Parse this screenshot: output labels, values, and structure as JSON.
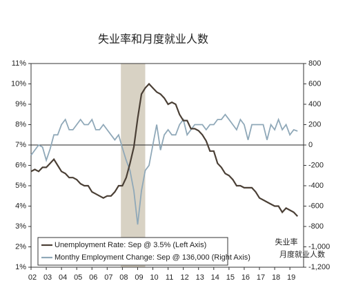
{
  "chart_data": {
    "type": "line",
    "title": "失业率和月度就业人数",
    "x": [
      2002,
      2002.25,
      2002.5,
      2002.75,
      2003,
      2003.25,
      2003.5,
      2003.75,
      2004,
      2004.25,
      2004.5,
      2004.75,
      2005,
      2005.25,
      2005.5,
      2005.75,
      2006,
      2006.25,
      2006.5,
      2006.75,
      2007,
      2007.25,
      2007.5,
      2007.75,
      2008,
      2008.25,
      2008.5,
      2008.75,
      2009,
      2009.25,
      2009.5,
      2009.75,
      2010,
      2010.25,
      2010.5,
      2010.75,
      2011,
      2011.25,
      2011.5,
      2011.75,
      2012,
      2012.25,
      2012.5,
      2012.75,
      2013,
      2013.25,
      2013.5,
      2013.75,
      2014,
      2014.25,
      2014.5,
      2014.75,
      2015,
      2015.25,
      2015.5,
      2015.75,
      2016,
      2016.25,
      2016.5,
      2016.75,
      2017,
      2017.25,
      2017.5,
      2017.75,
      2018,
      2018.25,
      2018.5,
      2018.75,
      2019,
      2019.25,
      2019.5
    ],
    "series": [
      {
        "name": "Unemployment Rate: Sep @ 3.5% (Left Axis)",
        "label": "失业率",
        "color": "#4a3f35",
        "axis": "y",
        "values": [
          5.7,
          5.8,
          5.7,
          5.9,
          5.9,
          6.1,
          6.3,
          6.0,
          5.7,
          5.6,
          5.4,
          5.4,
          5.3,
          5.1,
          5.0,
          5.0,
          4.7,
          4.6,
          4.5,
          4.4,
          4.5,
          4.5,
          4.7,
          5.0,
          5.0,
          5.4,
          6.1,
          6.9,
          8.3,
          9.5,
          9.8,
          10.0,
          9.8,
          9.6,
          9.5,
          9.3,
          9.0,
          9.1,
          9.0,
          8.5,
          8.2,
          8.2,
          7.8,
          7.8,
          7.7,
          7.5,
          7.2,
          6.7,
          6.7,
          6.1,
          5.9,
          5.6,
          5.5,
          5.3,
          5.0,
          5.0,
          4.9,
          4.9,
          4.9,
          4.7,
          4.4,
          4.3,
          4.2,
          4.1,
          4.0,
          4.0,
          3.7,
          3.9,
          3.8,
          3.7,
          3.5
        ]
      },
      {
        "name": "Monthy Employment Change: Sep @ 136,000 (Right Axis)",
        "label": "月度就业人数",
        "color": "#8fa8b8",
        "axis": "y2",
        "values": [
          -100,
          -50,
          0,
          -20,
          -150,
          -40,
          100,
          100,
          200,
          250,
          150,
          150,
          200,
          250,
          200,
          200,
          250,
          150,
          150,
          200,
          150,
          100,
          50,
          100,
          -30,
          -150,
          -250,
          -450,
          -780,
          -450,
          -250,
          -200,
          0,
          200,
          -50,
          100,
          150,
          100,
          100,
          200,
          250,
          100,
          150,
          200,
          200,
          200,
          150,
          200,
          200,
          250,
          250,
          300,
          250,
          200,
          150,
          250,
          200,
          50,
          200,
          200,
          200,
          200,
          50,
          200,
          150,
          250,
          150,
          200,
          100,
          150,
          136
        ]
      }
    ],
    "recession": [
      2007.9,
      2009.5
    ],
    "xlim": [
      2002,
      2019.9
    ],
    "xticks": [
      {
        "value": 2002,
        "label": "02"
      },
      {
        "value": 2003,
        "label": "03"
      },
      {
        "value": 2004,
        "label": "04"
      },
      {
        "value": 2005,
        "label": "05"
      },
      {
        "value": 2006,
        "label": "06"
      },
      {
        "value": 2007,
        "label": "07"
      },
      {
        "value": 2008,
        "label": "08"
      },
      {
        "value": 2009,
        "label": "09"
      },
      {
        "value": 2010,
        "label": "10"
      },
      {
        "value": 2011,
        "label": "11"
      },
      {
        "value": 2012,
        "label": "12"
      },
      {
        "value": 2013,
        "label": "13"
      },
      {
        "value": 2014,
        "label": "14"
      },
      {
        "value": 2015,
        "label": "15"
      },
      {
        "value": 2016,
        "label": "16"
      },
      {
        "value": 2017,
        "label": "17"
      },
      {
        "value": 2018,
        "label": "18"
      },
      {
        "value": 2019,
        "label": "19"
      }
    ],
    "ylim": [
      1,
      11
    ],
    "yticks": [
      {
        "value": 1,
        "label": "1%"
      },
      {
        "value": 2,
        "label": "2%"
      },
      {
        "value": 3,
        "label": "3%"
      },
      {
        "value": 4,
        "label": "4%"
      },
      {
        "value": 5,
        "label": "5%"
      },
      {
        "value": 6,
        "label": "6%"
      },
      {
        "value": 7,
        "label": "7%"
      },
      {
        "value": 8,
        "label": "8%"
      },
      {
        "value": 9,
        "label": "9%"
      },
      {
        "value": 10,
        "label": "10%"
      },
      {
        "value": 11,
        "label": "11%"
      }
    ],
    "y2lim": [
      -1200,
      800
    ],
    "y2ticks": [
      {
        "value": -1200,
        "label": "-1,200"
      },
      {
        "value": -1000,
        "label": "-1,000"
      },
      -800,
      -600,
      -400,
      -200,
      0,
      200,
      400,
      600,
      800
    ],
    "zero_line": 0
  }
}
